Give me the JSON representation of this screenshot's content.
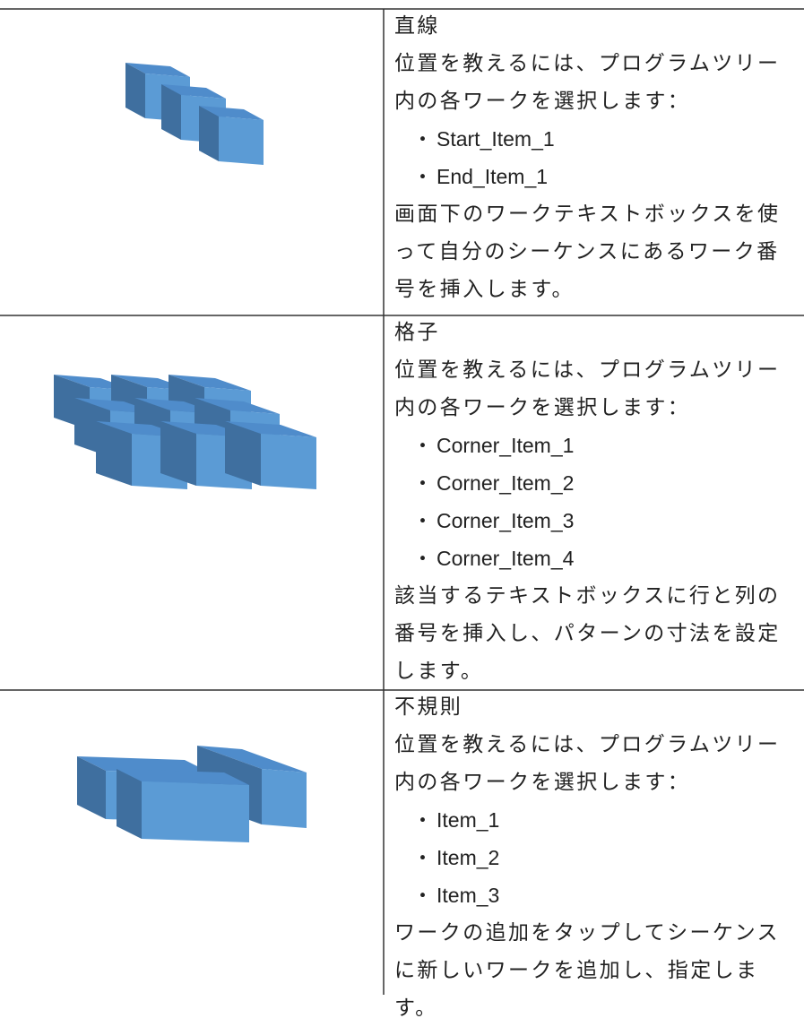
{
  "rows": [
    {
      "title": "直線",
      "intro": "位置を教えるには、プログラムツリー内の各ワークを選択します：",
      "items": [
        "Start_Item_1",
        "End_Item_1"
      ],
      "note": "画面下のワークテキストボックスを使って自分のシーケンスにあるワーク番号を挿入します。"
    },
    {
      "title": "格子",
      "intro": "位置を教えるには、プログラムツリー内の各ワークを選択します：",
      "items": [
        "Corner_Item_1",
        "Corner_Item_2",
        "Corner_Item_3",
        "Corner_Item_4"
      ],
      "note": "該当するテキストボックスに行と列の番号を挿入し、パターンの寸法を設定します。"
    },
    {
      "title": "不規則",
      "intro": "位置を教えるには、プログラムツリー内の各ワークを選択します：",
      "items": [
        "Item_1",
        "Item_2",
        "Item_3"
      ],
      "note": "ワークの追加をタップしてシーケンスに新しいワークを追加し、指定します。"
    }
  ]
}
